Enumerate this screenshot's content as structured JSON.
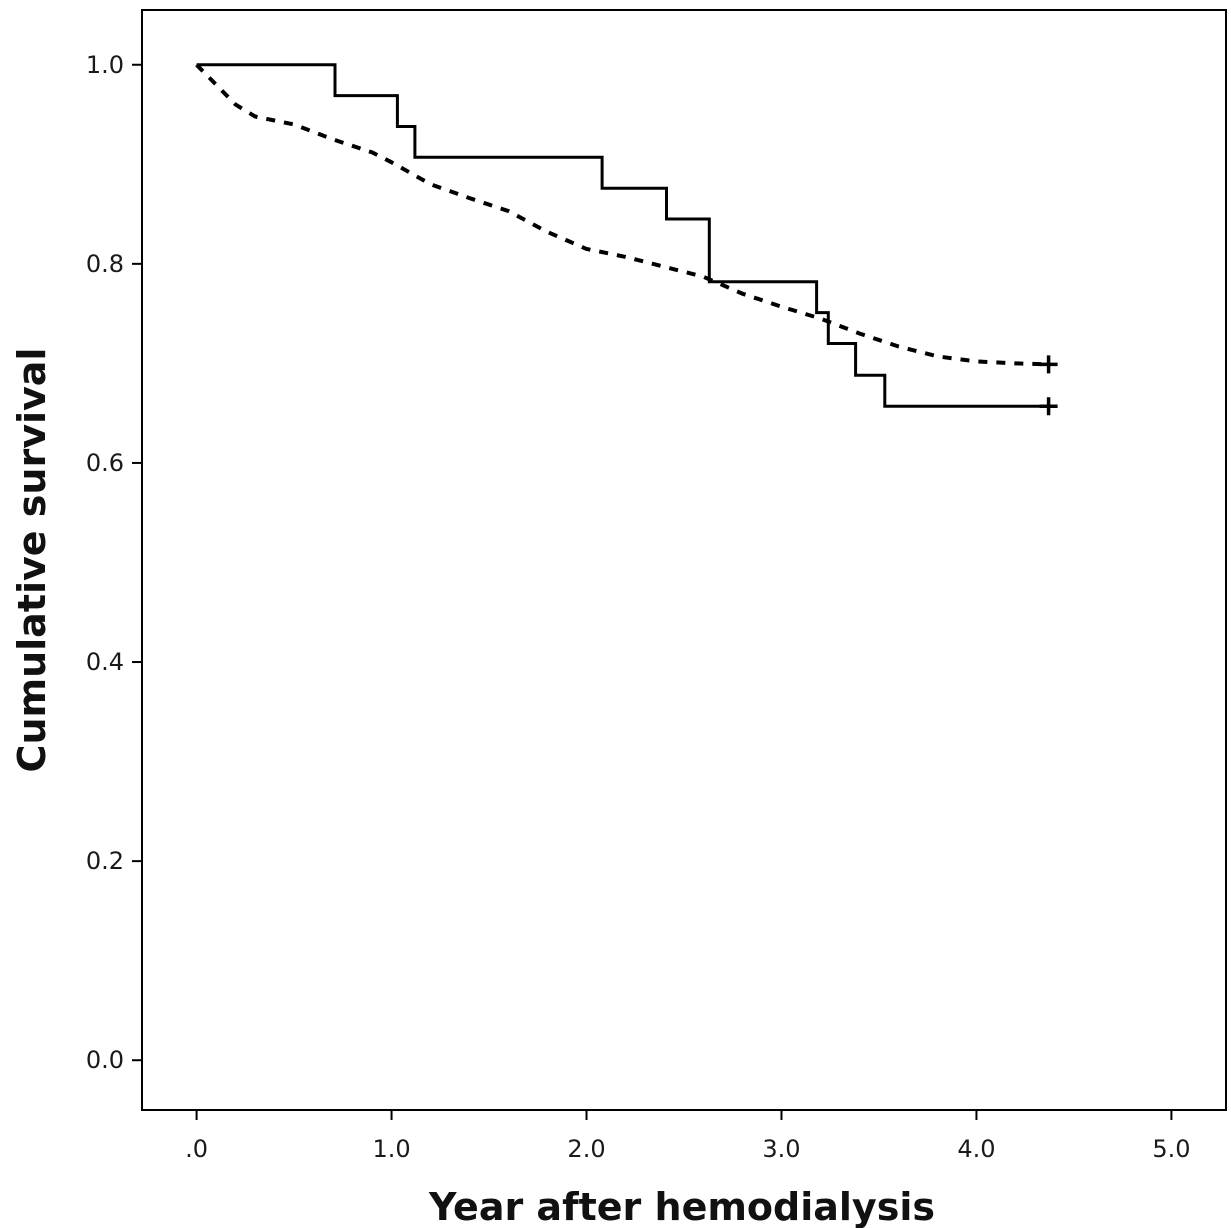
{
  "chart_data": {
    "type": "line",
    "subtype": "kaplan-meier step",
    "title": "",
    "xlabel": "Year after hemodialysis",
    "ylabel": "Cumulative survival",
    "xlim": [
      -0.28,
      5.28
    ],
    "ylim": [
      -0.05,
      1.055
    ],
    "xticks": [
      0,
      1,
      2,
      3,
      4,
      5
    ],
    "xtick_labels": [
      ".0",
      "1.0",
      "2.0",
      "3.0",
      "4.0",
      "5.0"
    ],
    "yticks": [
      0,
      0.2,
      0.4,
      0.6,
      0.8,
      1.0
    ],
    "ytick_labels": [
      "0.0",
      "0.2",
      "0.4",
      "0.6",
      "0.8",
      "1.0"
    ],
    "grid": false,
    "legend": "none",
    "series": [
      {
        "style": "solid",
        "color": "#000000",
        "censor_marks": [
          [
            4.37,
            0.657
          ]
        ],
        "points": [
          [
            0,
            1.0
          ],
          [
            0.71,
            1.0
          ],
          [
            0.71,
            0.969
          ],
          [
            1.03,
            0.969
          ],
          [
            1.03,
            0.938
          ],
          [
            1.12,
            0.938
          ],
          [
            1.12,
            0.907
          ],
          [
            2.08,
            0.907
          ],
          [
            2.08,
            0.876
          ],
          [
            2.41,
            0.876
          ],
          [
            2.41,
            0.845
          ],
          [
            2.63,
            0.845
          ],
          [
            2.63,
            0.782
          ],
          [
            3.18,
            0.782
          ],
          [
            3.18,
            0.751
          ],
          [
            3.24,
            0.751
          ],
          [
            3.24,
            0.72
          ],
          [
            3.38,
            0.72
          ],
          [
            3.38,
            0.688
          ],
          [
            3.53,
            0.688
          ],
          [
            3.53,
            0.657
          ],
          [
            4.37,
            0.657
          ]
        ]
      },
      {
        "style": "dotted",
        "color": "#000000",
        "censor_marks": [
          [
            4.37,
            0.699
          ]
        ],
        "points": [
          [
            0,
            1.0
          ],
          [
            0.1,
            0.98
          ],
          [
            0.2,
            0.96
          ],
          [
            0.3,
            0.948
          ],
          [
            0.5,
            0.94
          ],
          [
            0.7,
            0.925
          ],
          [
            0.9,
            0.912
          ],
          [
            1.0,
            0.902
          ],
          [
            1.2,
            0.88
          ],
          [
            1.4,
            0.866
          ],
          [
            1.6,
            0.853
          ],
          [
            1.8,
            0.832
          ],
          [
            2.0,
            0.815
          ],
          [
            2.2,
            0.807
          ],
          [
            2.4,
            0.797
          ],
          [
            2.6,
            0.787
          ],
          [
            2.8,
            0.77
          ],
          [
            3.0,
            0.757
          ],
          [
            3.2,
            0.745
          ],
          [
            3.4,
            0.73
          ],
          [
            3.6,
            0.717
          ],
          [
            3.8,
            0.707
          ],
          [
            4.0,
            0.702
          ],
          [
            4.2,
            0.7
          ],
          [
            4.37,
            0.699
          ]
        ]
      }
    ]
  }
}
